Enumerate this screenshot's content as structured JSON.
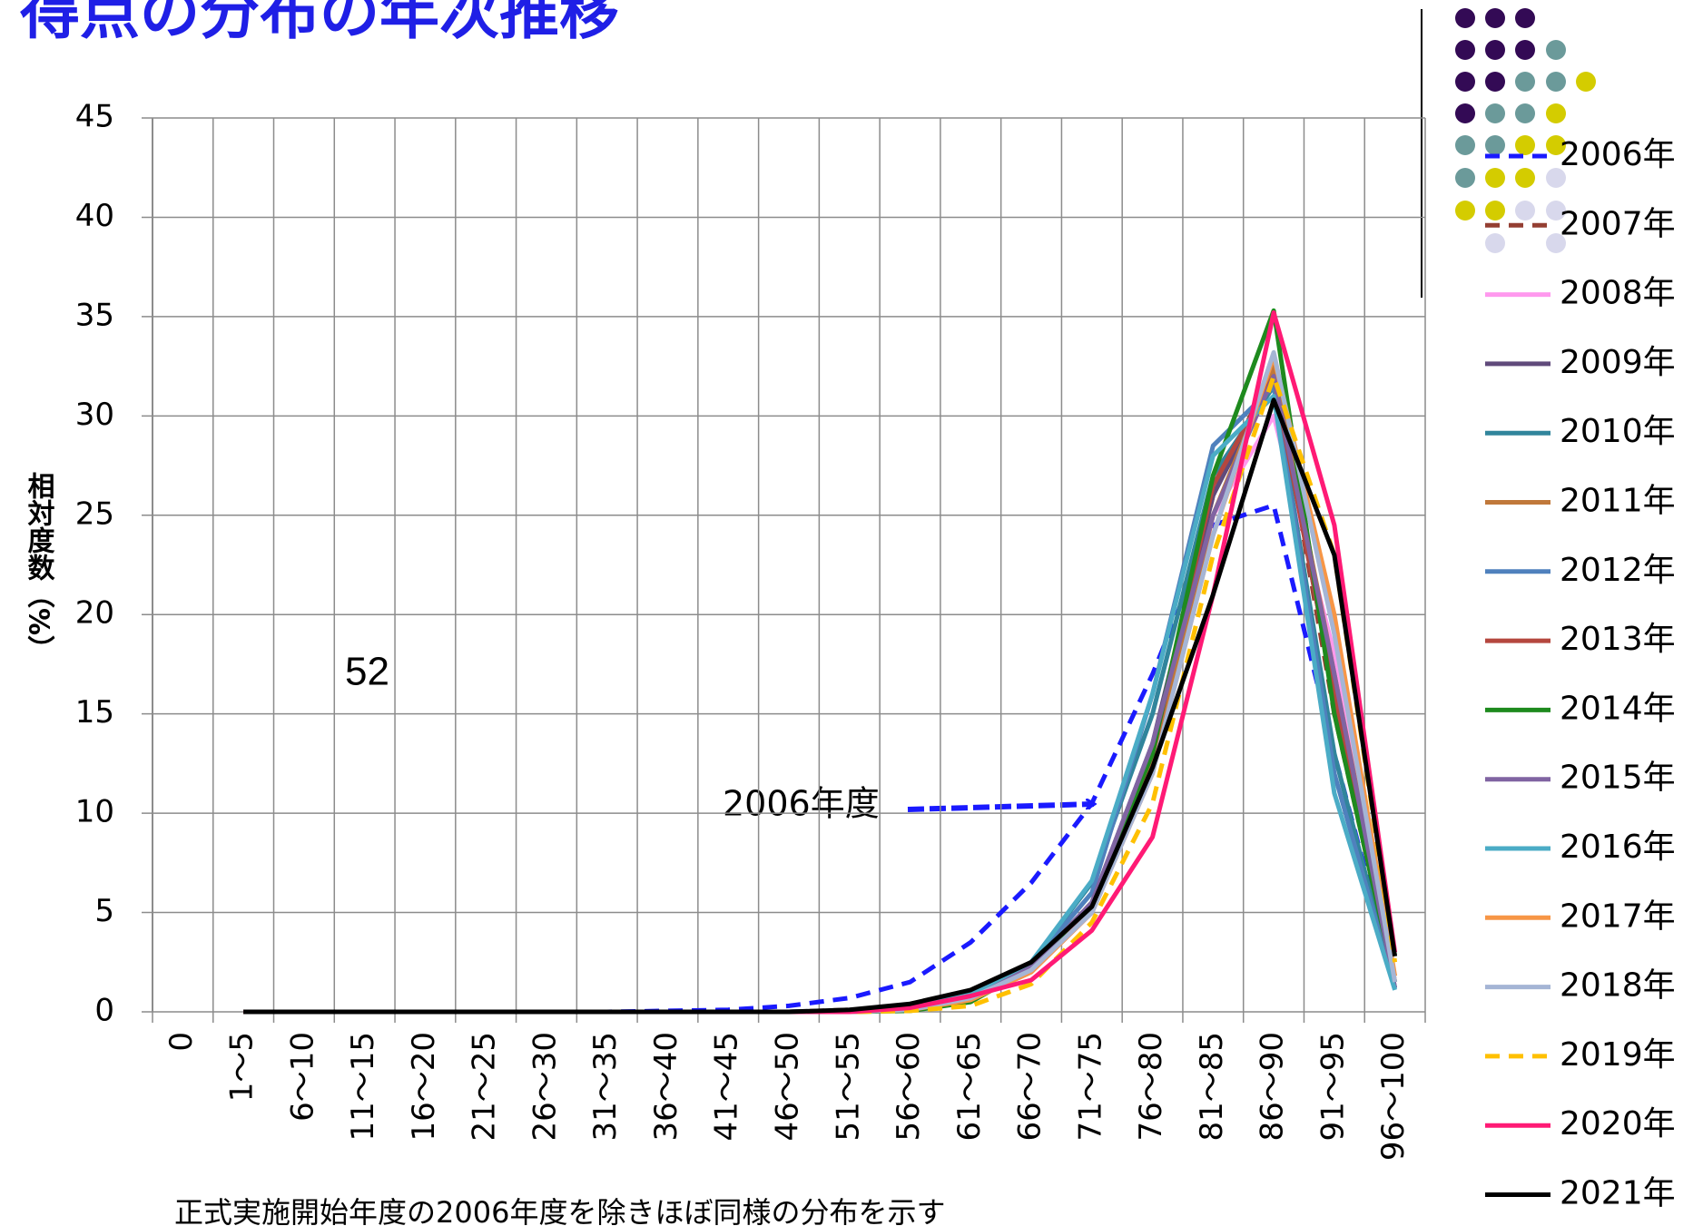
{
  "chart_data": {
    "type": "line",
    "title": "得点の分布の年次推移",
    "ylabel": "相対度数（%）",
    "annotations": [
      "52",
      "2006年度",
      "正式実施開始年度の2006年度を除きほぼ同様の分布を示す"
    ],
    "categories": [
      "0",
      "1～5",
      "6～10",
      "11～15",
      "16～20",
      "21～25",
      "26～30",
      "31～35",
      "36～40",
      "41～45",
      "46～50",
      "51～55",
      "56～60",
      "61～65",
      "66～70",
      "71～75",
      "76～80",
      "81～85",
      "86～90",
      "91～95",
      "96～100"
    ],
    "ylim": [
      0,
      45
    ],
    "yticks": [
      0,
      5,
      10,
      15,
      20,
      25,
      30,
      35,
      40,
      45
    ],
    "grid": true,
    "series": [
      {
        "name": "2006年",
        "color": "#1a1aff",
        "dashed": true,
        "values": [
          null,
          0,
          0,
          0,
          0,
          0,
          0,
          0,
          0.05,
          0.1,
          0.3,
          0.7,
          1.5,
          3.5,
          6.5,
          10.5,
          17,
          24.5,
          25.5,
          13,
          1.5
        ]
      },
      {
        "name": "2007年",
        "color": "#943f32",
        "dashed": true,
        "values": [
          null,
          0,
          0,
          0,
          0,
          0,
          0,
          0,
          0,
          0,
          0,
          0.1,
          0.3,
          0.8,
          2.3,
          5.5,
          13,
          26,
          32.5,
          15,
          1.5
        ]
      },
      {
        "name": "2008年",
        "color": "#ff99ee",
        "values": [
          null,
          0,
          0,
          0,
          0,
          0,
          0,
          0,
          0,
          0,
          0,
          0.05,
          0.2,
          0.6,
          2,
          5,
          12,
          25,
          30,
          18,
          1.5
        ]
      },
      {
        "name": "2009年",
        "color": "#604a7b",
        "values": [
          null,
          0,
          0,
          0,
          0,
          0,
          0,
          0,
          0,
          0,
          0,
          0.05,
          0.2,
          0.7,
          2.3,
          5.5,
          13.5,
          26,
          32,
          16,
          1.2
        ]
      },
      {
        "name": "2010年",
        "color": "#31859c",
        "values": [
          null,
          0,
          0,
          0,
          0,
          0,
          0,
          0,
          0,
          0,
          0,
          0.05,
          0.2,
          0.8,
          2.5,
          6.5,
          15,
          27,
          31.5,
          13,
          1.2
        ]
      },
      {
        "name": "2011年",
        "color": "#c0783a",
        "values": [
          null,
          0,
          0,
          0,
          0,
          0,
          0,
          0,
          0,
          0,
          0,
          0,
          0.1,
          0.6,
          2.2,
          5,
          12.5,
          25,
          32.5,
          17,
          1.5
        ]
      },
      {
        "name": "2012年",
        "color": "#4f81bd",
        "values": [
          null,
          0,
          0,
          0,
          0,
          0,
          0,
          0,
          0,
          0,
          0,
          0.05,
          0.2,
          0.8,
          2.4,
          6,
          16,
          28.5,
          31.5,
          12,
          1.2
        ]
      },
      {
        "name": "2013年",
        "color": "#b5473e",
        "values": [
          null,
          0,
          0,
          0,
          0,
          0,
          0,
          0,
          0,
          0,
          0,
          0,
          0.1,
          0.6,
          2.2,
          5,
          13,
          26.5,
          32,
          16,
          1.5
        ]
      },
      {
        "name": "2014年",
        "color": "#1e8a1e",
        "values": [
          null,
          0,
          0,
          0,
          0,
          0,
          0,
          0,
          0,
          0,
          0,
          0,
          0.05,
          0.5,
          2.2,
          5.5,
          13,
          27,
          35.3,
          15,
          1.5
        ]
      },
      {
        "name": "2015年",
        "color": "#8064a2",
        "values": [
          null,
          0,
          0,
          0,
          0,
          0,
          0,
          0,
          0,
          0,
          0,
          0,
          0.1,
          0.7,
          2.3,
          5.5,
          13.5,
          25,
          32,
          17,
          1.2
        ]
      },
      {
        "name": "2016年",
        "color": "#4bacc6",
        "values": [
          null,
          0,
          0,
          0,
          0,
          0,
          0,
          0,
          0,
          0,
          0,
          0.05,
          0.2,
          0.9,
          2.5,
          6.6,
          16,
          28,
          31,
          11,
          1.1
        ]
      },
      {
        "name": "2017年",
        "color": "#f79646",
        "values": [
          null,
          0,
          0,
          0,
          0,
          0,
          0,
          0,
          0,
          0,
          0,
          0,
          0.1,
          0.6,
          2,
          5,
          12,
          24,
          33,
          20,
          1.8
        ]
      },
      {
        "name": "2018年",
        "color": "#a5b5d5",
        "values": [
          null,
          0,
          0,
          0,
          0,
          0,
          0,
          0,
          0,
          0,
          0,
          0,
          0.1,
          0.7,
          2.1,
          5,
          12,
          24,
          33.2,
          19,
          1.5
        ]
      },
      {
        "name": "2019年",
        "color": "#ffc000",
        "dashed": true,
        "values": [
          null,
          0,
          0,
          0,
          0,
          0,
          0,
          0,
          0,
          0,
          0,
          0,
          0.05,
          0.3,
          1.4,
          4.5,
          10.5,
          23,
          32,
          23,
          2.5
        ]
      },
      {
        "name": "2020年",
        "color": "#ff1a75",
        "values": [
          null,
          0,
          0,
          0,
          0,
          0,
          0,
          0,
          0,
          0,
          0,
          0,
          0.2,
          0.8,
          1.6,
          4.1,
          8.8,
          21,
          35.2,
          24.5,
          3
        ]
      },
      {
        "name": "2021年",
        "color": "#000000",
        "values": [
          null,
          0,
          0,
          0,
          0,
          0,
          0,
          0,
          0,
          0,
          0,
          0.1,
          0.4,
          1.1,
          2.5,
          5.3,
          12.3,
          21,
          30.8,
          23,
          2.8
        ]
      }
    ]
  }
}
